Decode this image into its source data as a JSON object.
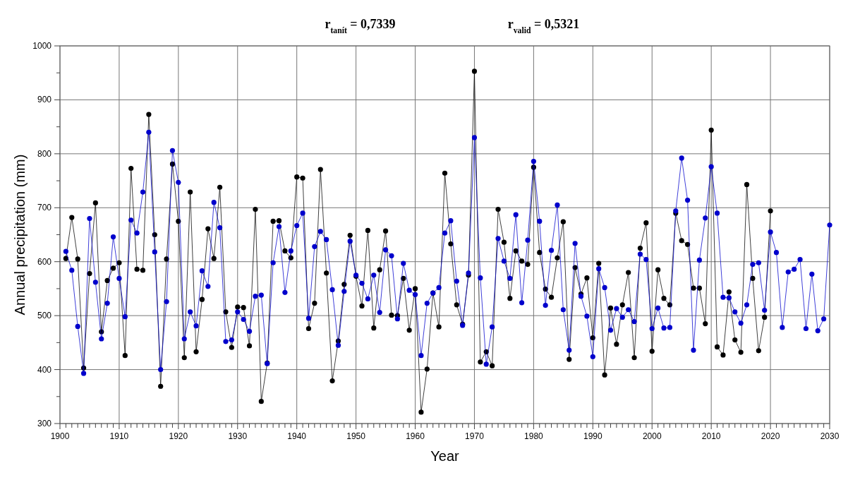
{
  "chart_data": {
    "type": "line",
    "xlabel": "Year",
    "ylabel": "Annual precipitation (mm)",
    "annotations": [
      "r$_{tanít}$ = 0,7339",
      "r$_{valid}$ = 0,5321"
    ],
    "xlim": [
      1900,
      2030
    ],
    "ylim": [
      300,
      1000
    ],
    "xticks": [
      1900,
      1910,
      1920,
      1930,
      1940,
      1950,
      1960,
      1970,
      1980,
      1990,
      2000,
      2010,
      2020,
      2030,
      {
        "value": 1901,
        "label": null
      },
      {
        "value": 1902,
        "label": null
      },
      {
        "value": 1903,
        "label": null
      },
      {
        "value": 1904,
        "label": null
      },
      {
        "value": 1905,
        "label": null
      },
      {
        "value": 1906,
        "label": null
      },
      {
        "value": 1907,
        "label": null
      },
      {
        "value": 1908,
        "label": null
      },
      {
        "value": 1909,
        "label": null
      },
      {
        "value": 1911,
        "label": null
      },
      {
        "value": 1912,
        "label": null
      },
      {
        "value": 1913,
        "label": null
      },
      {
        "value": 1914,
        "label": null
      },
      {
        "value": 1915,
        "label": null
      },
      {
        "value": 1916,
        "label": null
      },
      {
        "value": 1917,
        "label": null
      },
      {
        "value": 1918,
        "label": null
      },
      {
        "value": 1919,
        "label": null
      },
      {
        "value": 1921,
        "label": null
      },
      {
        "value": 1922,
        "label": null
      },
      {
        "value": 1923,
        "label": null
      },
      {
        "value": 1924,
        "label": null
      },
      {
        "value": 1925,
        "label": null
      },
      {
        "value": 1926,
        "label": null
      },
      {
        "value": 1927,
        "label": null
      },
      {
        "value": 1928,
        "label": null
      },
      {
        "value": 1929,
        "label": null
      },
      {
        "value": 1931,
        "label": null
      },
      {
        "value": 1932,
        "label": null
      },
      {
        "value": 1933,
        "label": null
      },
      {
        "value": 1934,
        "label": null
      },
      {
        "value": 1935,
        "label": null
      },
      {
        "value": 1936,
        "label": null
      },
      {
        "value": 1937,
        "label": null
      },
      {
        "value": 1938,
        "label": null
      },
      {
        "value": 1939,
        "label": null
      },
      {
        "value": 1941,
        "label": null
      },
      {
        "value": 1942,
        "label": null
      },
      {
        "value": 1943,
        "label": null
      },
      {
        "value": 1944,
        "label": null
      },
      {
        "value": 1945,
        "label": null
      },
      {
        "value": 1946,
        "label": null
      },
      {
        "value": 1947,
        "label": null
      },
      {
        "value": 1948,
        "label": null
      },
      {
        "value": 1949,
        "label": null
      },
      {
        "value": 1951,
        "label": null
      },
      {
        "value": 1952,
        "label": null
      },
      {
        "value": 1953,
        "label": null
      },
      {
        "value": 1954,
        "label": null
      },
      {
        "value": 1955,
        "label": null
      },
      {
        "value": 1956,
        "label": null
      },
      {
        "value": 1957,
        "label": null
      },
      {
        "value": 1958,
        "label": null
      },
      {
        "value": 1959,
        "label": null
      },
      {
        "value": 1961,
        "label": null
      },
      {
        "value": 1962,
        "label": null
      },
      {
        "value": 1963,
        "label": null
      },
      {
        "value": 1964,
        "label": null
      },
      {
        "value": 1965,
        "label": null
      },
      {
        "value": 1966,
        "label": null
      },
      {
        "value": 1967,
        "label": null
      },
      {
        "value": 1968,
        "label": null
      },
      {
        "value": 1969,
        "label": null
      },
      {
        "value": 1971,
        "label": null
      },
      {
        "value": 1972,
        "label": null
      },
      {
        "value": 1973,
        "label": null
      },
      {
        "value": 1974,
        "label": null
      },
      {
        "value": 1975,
        "label": null
      },
      {
        "value": 1976,
        "label": null
      },
      {
        "value": 1977,
        "label": null
      },
      {
        "value": 1978,
        "label": null
      },
      {
        "value": 1979,
        "label": null
      },
      {
        "value": 1981,
        "label": null
      },
      {
        "value": 1982,
        "label": null
      },
      {
        "value": 1983,
        "label": null
      },
      {
        "value": 1984,
        "label": null
      },
      {
        "value": 1985,
        "label": null
      },
      {
        "value": 1986,
        "label": null
      },
      {
        "value": 1987,
        "label": null
      },
      {
        "value": 1988,
        "label": null
      },
      {
        "value": 1989,
        "label": null
      },
      {
        "value": 1991,
        "label": null
      },
      {
        "value": 1992,
        "label": null
      },
      {
        "value": 1993,
        "label": null
      },
      {
        "value": 1994,
        "label": null
      },
      {
        "value": 1995,
        "label": null
      },
      {
        "value": 1996,
        "label": null
      },
      {
        "value": 1997,
        "label": null
      },
      {
        "value": 1998,
        "label": null
      },
      {
        "value": 1999,
        "label": null
      },
      {
        "value": 2001,
        "label": null
      },
      {
        "value": 2002,
        "label": null
      },
      {
        "value": 2003,
        "label": null
      },
      {
        "value": 2004,
        "label": null
      },
      {
        "value": 2005,
        "label": null
      },
      {
        "value": 2006,
        "label": null
      },
      {
        "value": 2007,
        "label": null
      },
      {
        "value": 2008,
        "label": null
      },
      {
        "value": 2009,
        "label": null
      },
      {
        "value": 2011,
        "label": null
      },
      {
        "value": 2012,
        "label": null
      },
      {
        "value": 2013,
        "label": null
      },
      {
        "value": 2014,
        "label": null
      },
      {
        "value": 2015,
        "label": null
      },
      {
        "value": 2016,
        "label": null
      },
      {
        "value": 2017,
        "label": null
      },
      {
        "value": 2018,
        "label": null
      },
      {
        "value": 2019,
        "label": null
      },
      {
        "value": 2021,
        "label": null
      },
      {
        "value": 2022,
        "label": null
      },
      {
        "value": 2023,
        "label": null
      },
      {
        "value": 2024,
        "label": null
      },
      {
        "value": 2025,
        "label": null
      },
      {
        "value": 2026,
        "label": null
      },
      {
        "value": 2027,
        "label": null
      },
      {
        "value": 2028,
        "label": null
      },
      {
        "value": 2029,
        "label": null
      }
    ],
    "yticks": [
      300,
      400,
      500,
      600,
      700,
      800,
      900,
      1000,
      {
        "value": 350,
        "label": null
      },
      {
        "value": 450,
        "label": null
      },
      {
        "value": 550,
        "label": null
      },
      {
        "value": 650,
        "label": null
      },
      {
        "value": 750,
        "label": null
      },
      {
        "value": 850,
        "label": null
      },
      {
        "value": 950,
        "label": null
      }
    ],
    "grid": true,
    "marker": "circle",
    "line_style": "solid",
    "series": [
      {
        "color": "#000000",
        "x": [
          1901,
          1902,
          1903,
          1904,
          1905,
          1906,
          1907,
          1908,
          1909,
          1910,
          1911,
          1912,
          1913,
          1914,
          1915,
          1916,
          1917,
          1918,
          1919,
          1920,
          1921,
          1922,
          1923,
          1924,
          1925,
          1926,
          1927,
          1928,
          1929,
          1930,
          1931,
          1932,
          1933,
          1934,
          1935,
          1936,
          1937,
          1938,
          1939,
          1940,
          1941,
          1942,
          1943,
          1944,
          1945,
          1946,
          1947,
          1948,
          1949,
          1950,
          1951,
          1952,
          1953,
          1954,
          1955,
          1956,
          1957,
          1958,
          1959,
          1960,
          1961,
          1962,
          1963,
          1964,
          1965,
          1966,
          1967,
          1968,
          1969,
          1970,
          1971,
          1972,
          1973,
          1974,
          1975,
          1976,
          1977,
          1978,
          1979,
          1980,
          1981,
          1982,
          1983,
          1984,
          1985,
          1986,
          1987,
          1988,
          1989,
          1990,
          1991,
          1992,
          1993,
          1994,
          1995,
          1996,
          1997,
          1998,
          1999,
          2000,
          2001,
          2002,
          2003,
          2004,
          2005,
          2006,
          2007,
          2008,
          2009,
          2010,
          2011,
          2012,
          2013,
          2014,
          2015,
          2016,
          2017,
          2018,
          2019,
          2020
        ],
        "values": [
          606,
          682,
          605,
          403,
          578,
          709,
          470,
          565,
          588,
          598,
          426,
          773,
          586,
          584,
          873,
          650,
          369,
          605,
          781,
          675,
          422,
          729,
          433,
          530,
          661,
          606,
          738,
          507,
          441,
          516,
          515,
          444,
          697,
          341,
          412,
          675,
          676,
          620,
          607,
          757,
          755,
          476,
          523,
          771,
          579,
          379,
          453,
          558,
          649,
          573,
          518,
          658,
          477,
          585,
          657,
          501,
          500,
          569,
          473,
          550,
          321,
          401,
          542,
          479,
          764,
          633,
          520,
          484,
          575,
          953,
          414,
          433,
          407,
          697,
          636,
          532,
          620,
          601,
          595,
          775,
          617,
          549,
          534,
          607,
          674,
          419,
          589,
          540,
          570,
          459,
          597,
          390,
          514,
          447,
          520,
          580,
          422,
          625,
          672,
          434,
          585,
          532,
          520,
          690,
          639,
          632,
          551,
          551,
          485,
          844,
          442,
          427,
          544,
          455,
          432,
          743,
          569,
          435,
          497,
          694
        ]
      },
      {
        "color": "#0000cc",
        "x": [
          1901,
          1902,
          1903,
          1904,
          1905,
          1906,
          1907,
          1908,
          1909,
          1910,
          1911,
          1912,
          1913,
          1914,
          1915,
          1916,
          1917,
          1918,
          1919,
          1920,
          1921,
          1922,
          1923,
          1924,
          1925,
          1926,
          1927,
          1928,
          1929,
          1930,
          1931,
          1932,
          1933,
          1934,
          1935,
          1936,
          1937,
          1938,
          1939,
          1940,
          1941,
          1942,
          1943,
          1944,
          1945,
          1946,
          1947,
          1948,
          1949,
          1950,
          1951,
          1952,
          1953,
          1954,
          1955,
          1956,
          1957,
          1958,
          1959,
          1960,
          1961,
          1962,
          1963,
          1964,
          1965,
          1966,
          1967,
          1968,
          1969,
          1970,
          1971,
          1972,
          1973,
          1974,
          1975,
          1976,
          1977,
          1978,
          1979,
          1980,
          1981,
          1982,
          1983,
          1984,
          1985,
          1986,
          1987,
          1988,
          1989,
          1990,
          1991,
          1992,
          1993,
          1994,
          1995,
          1996,
          1997,
          1998,
          1999,
          2000,
          2001,
          2002,
          2003,
          2004,
          2005,
          2006,
          2007,
          2008,
          2009,
          2010,
          2011,
          2012,
          2013,
          2014,
          2015,
          2016,
          2017,
          2018,
          2019,
          2020,
          2021,
          2022,
          2023,
          2024,
          2025,
          2026,
          2027,
          2028,
          2029,
          2030
        ],
        "values": [
          619,
          584,
          480,
          393,
          680,
          562,
          457,
          523,
          646,
          569,
          498,
          677,
          653,
          729,
          840,
          618,
          400,
          526,
          806,
          747,
          457,
          507,
          481,
          583,
          554,
          710,
          663,
          452,
          455,
          507,
          493,
          471,
          536,
          538,
          411,
          598,
          665,
          543,
          620,
          667,
          690,
          495,
          628,
          656,
          641,
          548,
          445,
          545,
          638,
          575,
          560,
          531,
          575,
          506,
          622,
          611,
          494,
          597,
          547,
          539,
          426,
          523,
          542,
          552,
          653,
          676,
          564,
          482,
          579,
          830,
          570,
          410,
          479,
          643,
          601,
          569,
          687,
          524,
          640,
          786,
          675,
          519,
          621,
          705,
          511,
          436,
          634,
          536,
          499,
          424,
          587,
          552,
          473,
          513,
          497,
          511,
          489,
          614,
          604,
          476,
          514,
          477,
          478,
          694,
          792,
          714,
          436,
          603,
          681,
          776,
          690,
          534,
          533,
          507,
          486,
          520,
          595,
          598,
          510,
          655,
          617,
          478,
          581,
          586,
          604,
          476,
          577,
          472,
          494,
          668
        ]
      }
    ]
  }
}
